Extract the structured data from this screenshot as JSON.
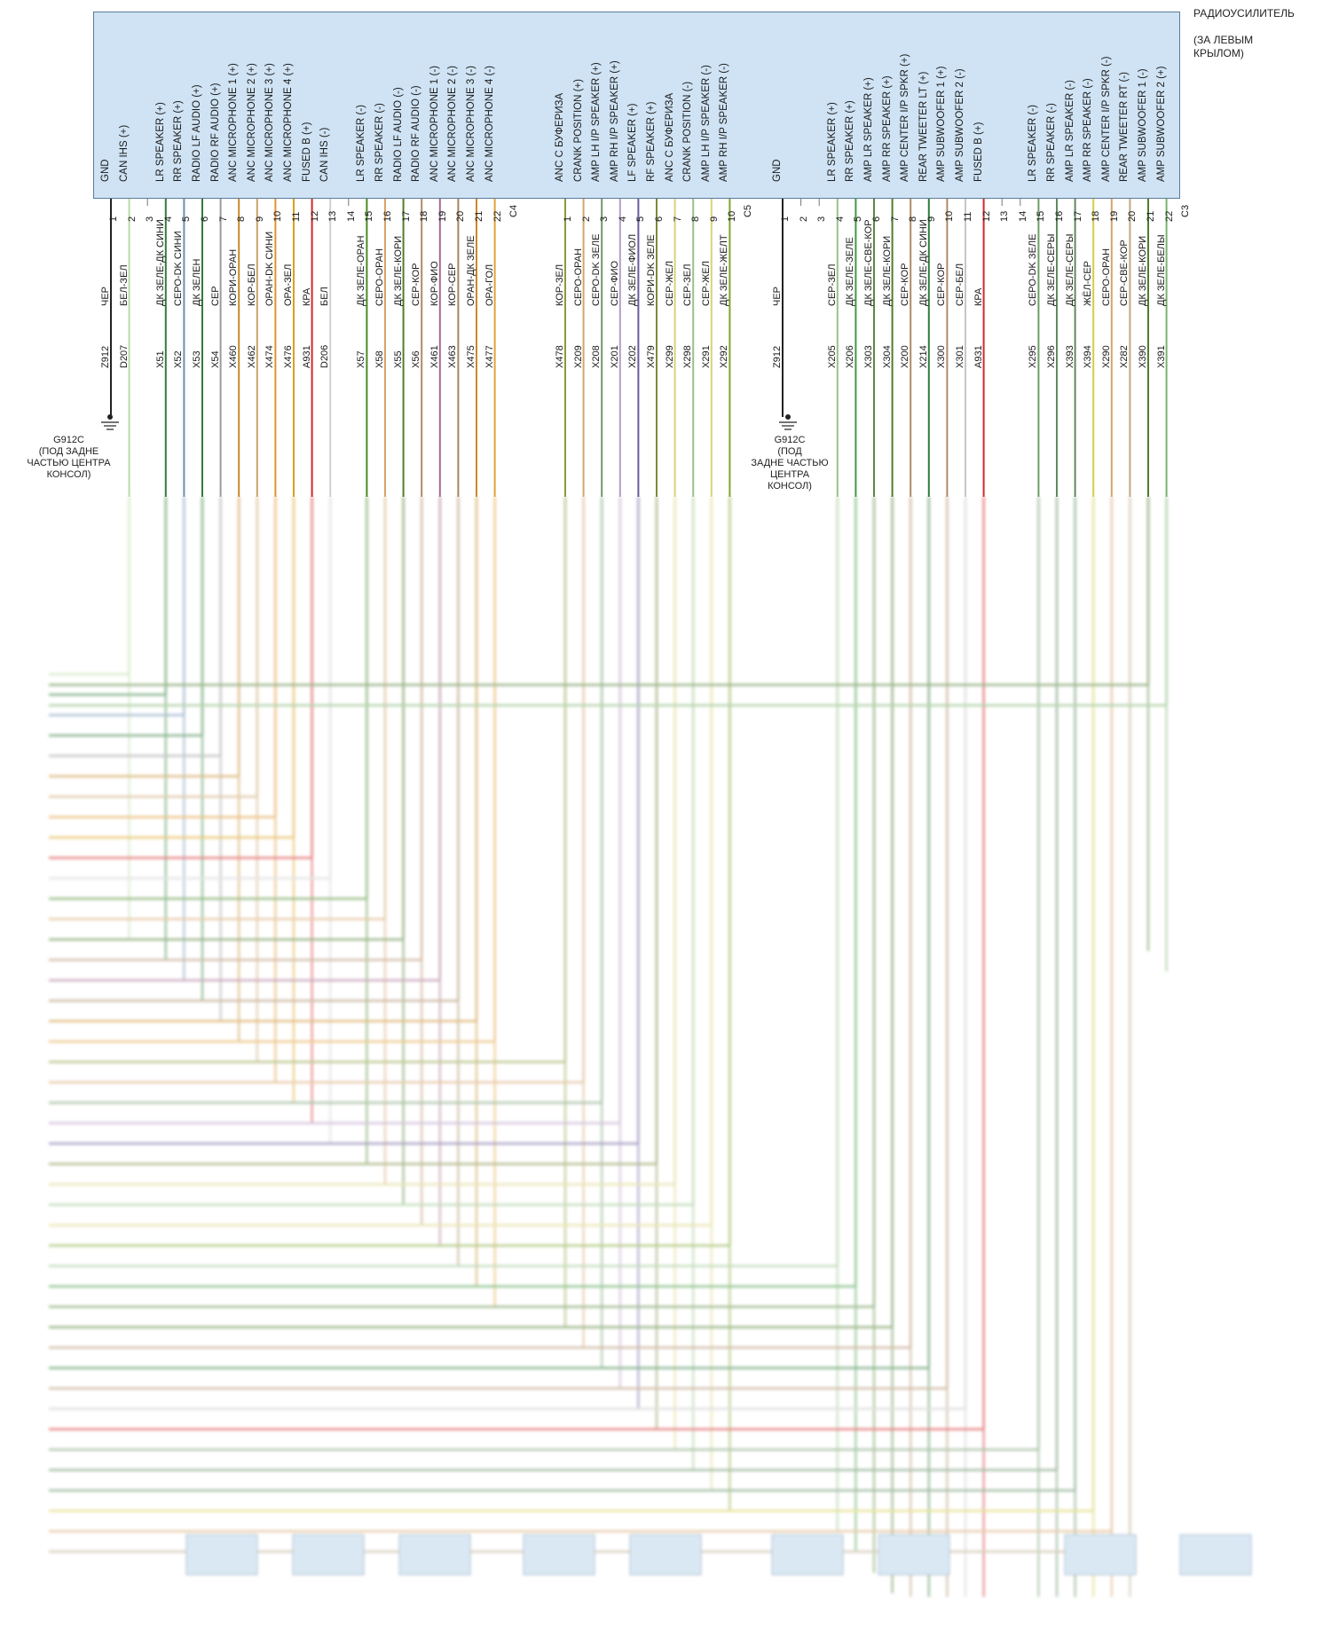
{
  "module": {
    "name": "РАДИОУСИЛИТЕЛЬ",
    "location": "(ЗА ЛЕВЫМ КРЫЛОМ)",
    "line1": "(ЗА ЛЕВЫМ",
    "line2": "КРЫЛОМ)"
  },
  "colors": {
    "box_fill": "#cfe3f4",
    "ЧЕР": "#222222",
    "БЕЛ-ЗЕЛ": "#b9dca3",
    "ДК ЗЕЛЕ-ДК СИНИ": "#2f7d3a",
    "СЕРО-DK СИНИ": "#6d8fb1",
    "ДК ЗЕЛЕН": "#2f7d3a",
    "СЕР": "#9a9a9a",
    "КОРИ-ОРАН": "#c58a2b",
    "КОР-БЕЛ": "#c9a36a",
    "ОРАН-DK СИНИ": "#e0922a",
    "ОРА-ЗЕЛ": "#d9a11c",
    "КРА": "#d62828",
    "БЕЛ": "#cfcfcf",
    "ДК ЗЕЛЕ-ОРАН": "#4b8a2a",
    "СЕРО-ОРАН": "#d7a26a",
    "ДК ЗЕЛЕ-КОРИ": "#4f7d2e",
    "СЕР-КОР": "#b08a66",
    "КОР-ФИО": "#a56a8c",
    "КОР-СЕР": "#a6845f",
    "ОРАН-ДК ЗЕЛЕ": "#c98a23",
    "ОРА-ГОЛ": "#e1a13b",
    "КОР-ЗЕЛ": "#8a9b3a",
    "СЕРО-DK ЗЕЛЕ": "#6f9a6b",
    "СЕР-ФИО": "#b69ac6",
    "ДК ЗЕЛЕ-ФИОЛ": "#6a5a9a",
    "КОРИ-DK ЗЕЛЕ": "#7b8a3a",
    "СЕР-ЖЕЛ": "#d9d27a",
    "СЕР-ЗЕЛ": "#98c28a",
    "ДК ЗЕЛЕ-ЖЕЛТ": "#7ea52e",
    "ДК ЗЕЛЕ-ЗЕЛЕ": "#3f9a3f",
    "ДК ЗЕЛЕ-СВЕ-КОР": "#5c8a3f",
    "СЕР-БЕЛ": "#c7c7c7",
    "СЕРО-DK ЗЕЛЕ2": "#6f9a6b",
    "ДК ЗЕЛЕ-СЕРЫ": "#5f8a5f",
    "ЖЁЛ-СЕР": "#d4cc4a",
    "СЕР-СВЕ-КОР": "#bda98a",
    "ДК ЗЕЛЕ-БЕЛЫ": "#79b26c"
  },
  "connectors": [
    {
      "id": "C4",
      "pins": [
        {
          "n": "1",
          "func": "GND",
          "color": "ЧЕР",
          "circuit": "Z912"
        },
        {
          "n": "2",
          "func": "CAN IHS (+)",
          "color": "БЕЛ-ЗЕЛ",
          "circuit": "D207"
        },
        {
          "n": "3",
          "func": "",
          "color": "",
          "circuit": ""
        },
        {
          "n": "4",
          "func": "LR SPEAKER (+)",
          "color": "ДК ЗЕЛЕ-ДК СИНИ",
          "circuit": "X51"
        },
        {
          "n": "5",
          "func": "RR SPEAKER (+)",
          "color": "СЕРО-DK СИНИ",
          "circuit": "X52"
        },
        {
          "n": "6",
          "func": "RADIO LF AUDIO (+)",
          "color": "ДК ЗЕЛЕН",
          "circuit": "X53"
        },
        {
          "n": "7",
          "func": "RADIO RF AUDIO (+)",
          "color": "СЕР",
          "circuit": "X54"
        },
        {
          "n": "8",
          "func": "ANC MICROPHONE 1 (+)",
          "color": "КОРИ-ОРАН",
          "circuit": "X460"
        },
        {
          "n": "9",
          "func": "ANC MICROPHONE 2 (+)",
          "color": "КОР-БЕЛ",
          "circuit": "X462"
        },
        {
          "n": "10",
          "func": "ANC MICROPHONE 3 (+)",
          "color": "ОРАН-DK СИНИ",
          "circuit": "X474"
        },
        {
          "n": "11",
          "func": "ANC MICROPHONE 4 (+)",
          "color": "ОРА-ЗЕЛ",
          "circuit": "X476"
        },
        {
          "n": "12",
          "func": "FUSED B (+)",
          "color": "КРА",
          "circuit": "A931"
        },
        {
          "n": "13",
          "func": "CAN IHS (-)",
          "color": "БЕЛ",
          "circuit": "D206"
        },
        {
          "n": "14",
          "func": "",
          "color": "",
          "circuit": ""
        },
        {
          "n": "15",
          "func": "LR SPEAKER (-)",
          "color": "ДК ЗЕЛЕ-ОРАН",
          "circuit": "X57"
        },
        {
          "n": "16",
          "func": "RR SPEAKER (-)",
          "color": "СЕРО-ОРАН",
          "circuit": "X58"
        },
        {
          "n": "17",
          "func": "RADIO LF AUDIO (-)",
          "color": "ДК ЗЕЛЕ-КОРИ",
          "circuit": "X55"
        },
        {
          "n": "18",
          "func": "RADIO RF AUDIO (-)",
          "color": "СЕР-КОР",
          "circuit": "X56"
        },
        {
          "n": "19",
          "func": "ANC MICROPHONE 1 (-)",
          "color": "КОР-ФИО",
          "circuit": "X461"
        },
        {
          "n": "20",
          "func": "ANC MICROPHONE 2 (-)",
          "color": "КОР-СЕР",
          "circuit": "X463"
        },
        {
          "n": "21",
          "func": "ANC MICROPHONE 3 (-)",
          "color": "ОРАН-ДК ЗЕЛЕ",
          "circuit": "X475"
        },
        {
          "n": "22",
          "func": "ANC MICROPHONE 4 (-)",
          "color": "ОРА-ГОЛ",
          "circuit": "X477"
        }
      ]
    },
    {
      "id": "C5",
      "pins": [
        {
          "n": "1",
          "func": "ANC С БУФЕРИЗА",
          "color": "КОР-ЗЕЛ",
          "circuit": "X478"
        },
        {
          "n": "2",
          "func": "CRANK POSITION (+)",
          "color": "СЕРО-ОРАН",
          "circuit": "X209"
        },
        {
          "n": "3",
          "func": "AMP LH I/P SPEAKER (+)",
          "color": "СЕРО-DK ЗЕЛЕ",
          "circuit": "X208"
        },
        {
          "n": "4",
          "func": "AMP RH I/P SPEAKER (+)",
          "color": "СЕР-ФИО",
          "circuit": "X201"
        },
        {
          "n": "5",
          "func": "LF SPEAKER (+)",
          "color": "ДК ЗЕЛЕ-ФИОЛ",
          "circuit": "X202"
        },
        {
          "n": "6",
          "func": "RF SPEAKER (+)",
          "color": "КОРИ-DK ЗЕЛЕ",
          "circuit": "X479"
        },
        {
          "n": "7",
          "func": "ANC С БУФЕРИЗА",
          "color": "СЕР-ЖЕЛ",
          "circuit": "X299"
        },
        {
          "n": "8",
          "func": "CRANK POSITION (-)",
          "color": "СЕР-ЗЕЛ",
          "circuit": "X298"
        },
        {
          "n": "9",
          "func": "AMP LH I/P SPEAKER (-)",
          "color": "СЕР-ЖЕЛ",
          "circuit": "X291"
        },
        {
          "n": "10",
          "func": "AMP RH I/P SPEAKER (-)",
          "color": "ДК ЗЕЛЕ-ЖЕЛТ",
          "circuit": "X292"
        }
      ]
    },
    {
      "id": "C3",
      "pins": [
        {
          "n": "1",
          "func": "GND",
          "color": "ЧЕР",
          "circuit": "Z912"
        },
        {
          "n": "2",
          "func": "",
          "color": "",
          "circuit": ""
        },
        {
          "n": "3",
          "func": "",
          "color": "",
          "circuit": ""
        },
        {
          "n": "4",
          "func": "LR SPEAKER (+)",
          "color": "СЕР-ЗЕЛ",
          "circuit": "X205"
        },
        {
          "n": "5",
          "func": "RR SPEAKER (+)",
          "color": "ДК ЗЕЛЕ-ЗЕЛЕ",
          "circuit": "X206"
        },
        {
          "n": "6",
          "func": "AMP LR SPEAKER (+)",
          "color": "ДК ЗЕЛЕ-СВЕ-КОР",
          "circuit": "X303"
        },
        {
          "n": "7",
          "func": "AMP RR SPEAKER (+)",
          "color": "ДК ЗЕЛЕ-КОРИ",
          "circuit": "X304"
        },
        {
          "n": "8",
          "func": "AMP CENTER I/P SPKR (+)",
          "color": "СЕР-КОР",
          "circuit": "X200"
        },
        {
          "n": "9",
          "func": "REAR TWEETER LT (+)",
          "color": "ДК ЗЕЛЕ-ДК СИНИ",
          "circuit": "X214"
        },
        {
          "n": "10",
          "func": "AMP SUBWOOFER 1 (+)",
          "color": "СЕР-КОР",
          "circuit": "X300"
        },
        {
          "n": "11",
          "func": "AMP SUBWOOFER 2 (-)",
          "color": "СЕР-БЕЛ",
          "circuit": "X301"
        },
        {
          "n": "12",
          "func": "FUSED B (+)",
          "color": "КРА",
          "circuit": "A931"
        },
        {
          "n": "13",
          "func": "",
          "color": "",
          "circuit": ""
        },
        {
          "n": "14",
          "func": "",
          "color": "",
          "circuit": ""
        },
        {
          "n": "15",
          "func": "LR SPEAKER (-)",
          "color": "СЕРО-DK ЗЕЛЕ",
          "circuit": "X295"
        },
        {
          "n": "16",
          "func": "RR SPEAKER (-)",
          "color": "ДК ЗЕЛЕ-СЕРЫ",
          "circuit": "X296"
        },
        {
          "n": "17",
          "func": "AMP LR SPEAKER (-)",
          "color": "ДК ЗЕЛЕ-СЕРЫ",
          "circuit": "X393"
        },
        {
          "n": "18",
          "func": "AMP RR SPEAKER (-)",
          "color": "ЖЁЛ-СЕР",
          "circuit": "X394"
        },
        {
          "n": "19",
          "func": "AMP CENTER I/P SPKR (-)",
          "color": "СЕРО-ОРАН",
          "circuit": "X290"
        },
        {
          "n": "20",
          "func": "REAR TWEETER RT (-)",
          "color": "СЕР-СВЕ-КОР",
          "circuit": "X282"
        },
        {
          "n": "21",
          "func": "AMP SUBWOOFER 1 (-)",
          "color": "ДК ЗЕЛЕ-КОРИ",
          "circuit": "X390"
        },
        {
          "n": "22",
          "func": "AMP SUBWOOFER 2 (+)",
          "color": "ДК ЗЕЛЕ-БЕЛЫ",
          "circuit": "X391"
        }
      ]
    }
  ],
  "grounds": [
    {
      "name": "G912C",
      "lines": [
        "G912C",
        "(ПОД ЗАДНЕ",
        "ЧАСТЬЮ ЦЕНТРА",
        "КОНСОЛ)"
      ]
    },
    {
      "name": "G912C",
      "lines": [
        "G912C",
        "(ПОД",
        "ЗАДНЕ ЧАСТЬЮ",
        "ЦЕНТРА",
        "КОНСОЛ)"
      ]
    }
  ]
}
